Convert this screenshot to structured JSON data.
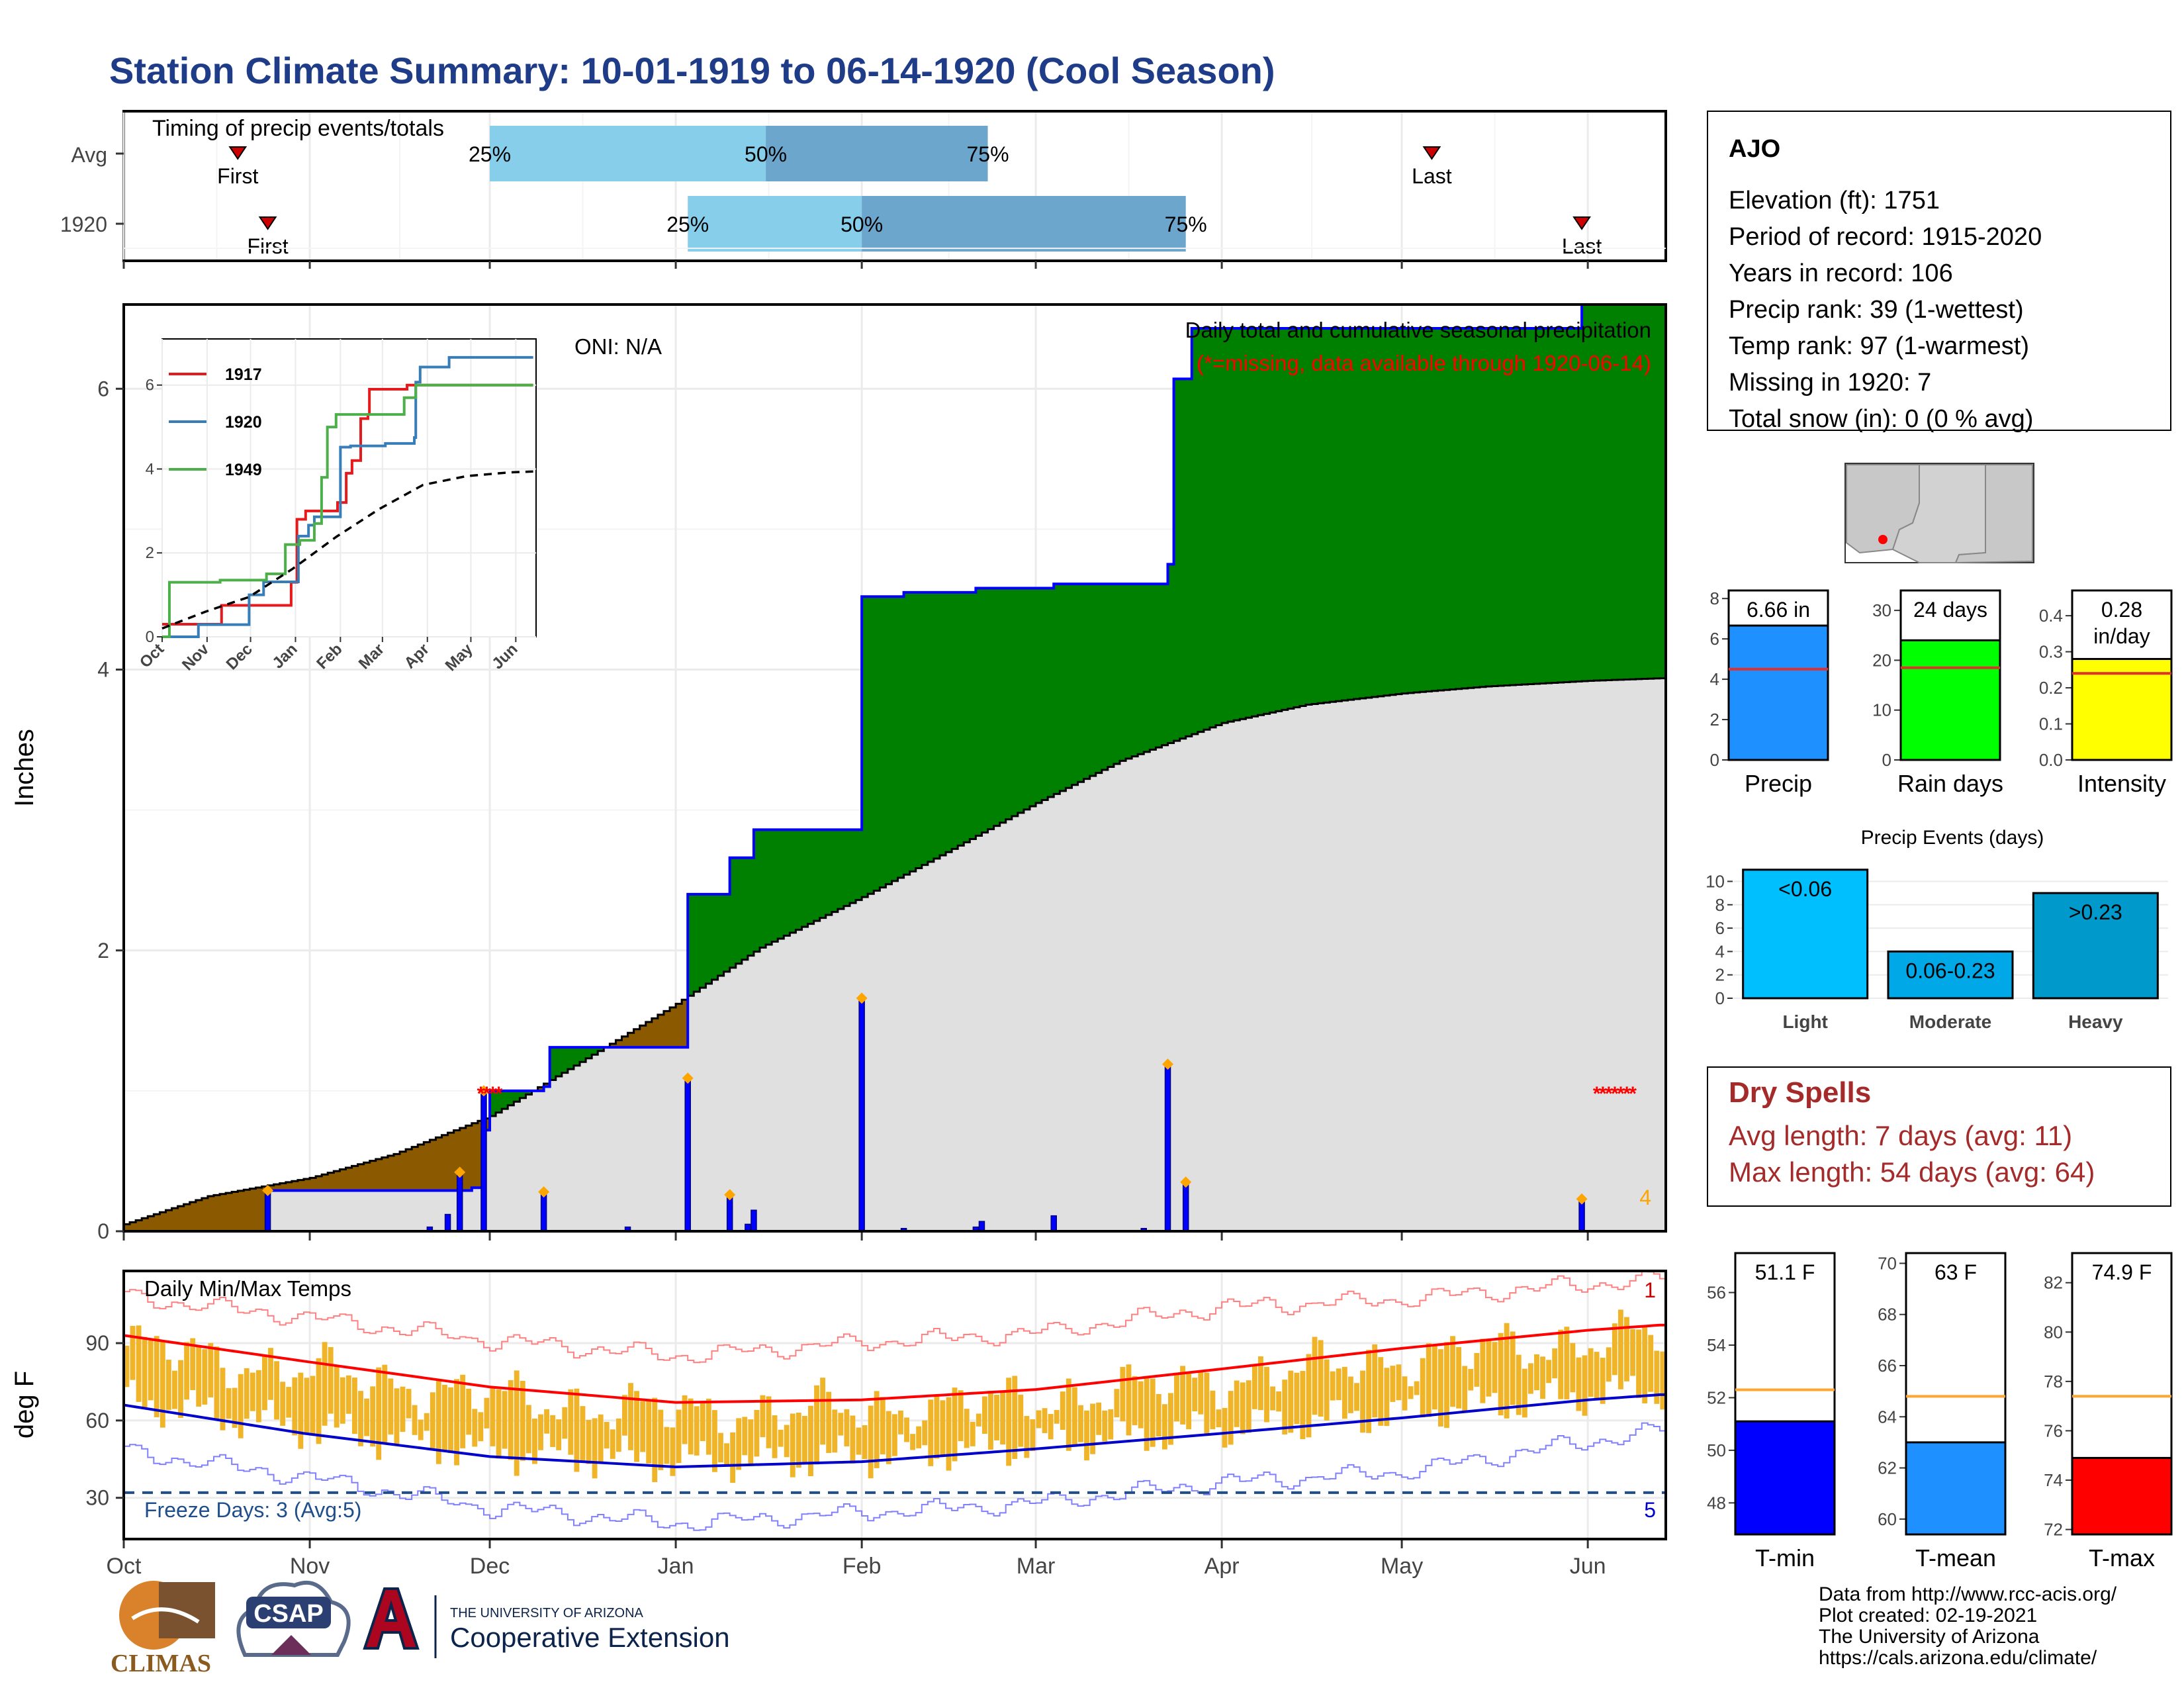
{
  "title": "Station Climate Summary: 10-01-1919 to 06-14-1920 (Cool Season)",
  "timing": {
    "label": "Timing of precip events/totals",
    "rows": [
      {
        "name": "Avg",
        "first_label": "First",
        "last_label": "Last",
        "first": "1919-10-20",
        "p25": "1919-12-01",
        "p50": "1920-01-16",
        "p75": "1920-02-22",
        "last": "1920-05-06"
      },
      {
        "name": "1920",
        "first_label": "First",
        "last_label": "Last",
        "first": "1919-10-25",
        "p25": "1920-01-03",
        "p50": "1920-02-01",
        "p75": "1920-03-26",
        "last": "1920-05-31"
      }
    ],
    "pct_labels": [
      "25%",
      "50%",
      "75%"
    ],
    "colors": {
      "light": "#87ceeb",
      "dark": "#6ca6cd"
    }
  },
  "chart_data": [
    {
      "type": "area",
      "name": "precip",
      "title": "Daily total and cumulative seasonal precipitation",
      "subtitle": "(*=missing, data available through 1920-06-14)",
      "oni": "ONI: N/A",
      "ylabel": "Inches",
      "ylim": [
        0,
        6.6
      ],
      "yticks": [
        0,
        2,
        4,
        6
      ],
      "x_range": [
        "1919-10-01",
        "1920-06-14"
      ],
      "count_label": "4",
      "cumulative_steps": [
        [
          "1919-10-01",
          0
        ],
        [
          "1919-10-25",
          0.29
        ],
        [
          "1919-11-28",
          0.31
        ],
        [
          "1919-11-30",
          0.72
        ],
        [
          "1919-12-01",
          1.0
        ],
        [
          "1919-12-10",
          1.03
        ],
        [
          "1919-12-11",
          1.31
        ],
        [
          "1920-01-01",
          1.31
        ],
        [
          "1920-01-03",
          2.4
        ],
        [
          "1920-01-10",
          2.66
        ],
        [
          "1920-01-14",
          2.86
        ],
        [
          "1920-02-01",
          4.52
        ],
        [
          "1920-02-08",
          4.55
        ],
        [
          "1920-02-20",
          4.58
        ],
        [
          "1920-03-04",
          4.61
        ],
        [
          "1920-03-23",
          4.75
        ],
        [
          "1920-03-24",
          6.07
        ],
        [
          "1920-03-27",
          6.43
        ],
        [
          "1920-05-31",
          6.66
        ],
        [
          "1920-06-14",
          6.66
        ]
      ],
      "avg_cumulative": [
        [
          "1919-10-01",
          0.05
        ],
        [
          "1919-10-15",
          0.25
        ],
        [
          "1919-11-01",
          0.38
        ],
        [
          "1919-11-15",
          0.55
        ],
        [
          "1919-12-01",
          0.82
        ],
        [
          "1919-12-15",
          1.18
        ],
        [
          "1920-01-01",
          1.62
        ],
        [
          "1920-01-15",
          2.02
        ],
        [
          "1920-02-01",
          2.38
        ],
        [
          "1920-02-15",
          2.7
        ],
        [
          "1920-03-01",
          3.05
        ],
        [
          "1920-03-15",
          3.35
        ],
        [
          "1920-04-01",
          3.62
        ],
        [
          "1920-04-15",
          3.75
        ],
        [
          "1920-05-01",
          3.83
        ],
        [
          "1920-05-15",
          3.88
        ],
        [
          "1920-06-01",
          3.92
        ],
        [
          "1920-06-14",
          3.94
        ]
      ],
      "daily": [
        [
          "1919-10-25",
          0.29
        ],
        [
          "1919-11-21",
          0.03
        ],
        [
          "1919-11-24",
          0.12
        ],
        [
          "1919-11-26",
          0.42
        ],
        [
          "1919-11-30",
          1.0
        ],
        [
          "1919-12-10",
          0.28
        ],
        [
          "1919-12-24",
          0.03
        ],
        [
          "1920-01-03",
          1.09
        ],
        [
          "1920-01-10",
          0.26
        ],
        [
          "1920-01-13",
          0.05
        ],
        [
          "1920-01-14",
          0.15
        ],
        [
          "1920-02-01",
          1.66
        ],
        [
          "1920-02-08",
          0.02
        ],
        [
          "1920-02-20",
          0.03
        ],
        [
          "1920-02-21",
          0.07
        ],
        [
          "1920-03-04",
          0.11
        ],
        [
          "1920-03-19",
          0.02
        ],
        [
          "1920-03-23",
          1.19
        ],
        [
          "1920-03-26",
          0.35
        ],
        [
          "1920-05-31",
          0.23
        ]
      ],
      "missing": [
        "1919-11-29",
        "1919-11-30",
        "1919-12-01",
        "1919-12-02",
        "1920-06-02",
        "1920-06-03",
        "1920-06-04",
        "1920-06-05",
        "1920-06-06",
        "1920-06-07",
        "1920-06-08"
      ],
      "colors": {
        "surplus": "#008000",
        "deficit": "#8b5a00",
        "avg_fill": "#e0e0e0",
        "line": "#0000ff",
        "marker": "#ffa500",
        "missing": "#ff0000"
      }
    },
    {
      "type": "line",
      "name": "inset",
      "x_categories": [
        "Oct",
        "Nov",
        "Dec",
        "Jan",
        "Feb",
        "Mar",
        "Apr",
        "May",
        "Jun"
      ],
      "yticks": [
        0,
        2,
        4,
        6
      ],
      "ylim": [
        0,
        7.1
      ],
      "series": [
        {
          "name": "1917",
          "color": "#e41a1c",
          "points": [
            [
              0,
              0.3
            ],
            [
              27,
              0.3
            ],
            [
              41,
              0.75
            ],
            [
              53,
              0.75
            ],
            [
              63,
              0.75
            ],
            [
              83,
              0.75
            ],
            [
              89,
              1.3
            ],
            [
              93,
              2.8
            ],
            [
              99,
              3.0
            ],
            [
              101,
              3.0
            ],
            [
              121,
              3.2
            ],
            [
              127,
              3.9
            ],
            [
              131,
              4.2
            ],
            [
              137,
              5.2
            ],
            [
              142,
              5.3
            ],
            [
              143,
              5.9
            ],
            [
              151,
              5.9
            ],
            [
              169,
              6.0
            ],
            [
              256,
              6.0
            ]
          ]
        },
        {
          "name": "1920",
          "color": "#377eb8",
          "points": [
            [
              0,
              0
            ],
            [
              25,
              0.29
            ],
            [
              60,
              1.0
            ],
            [
              70,
              1.31
            ],
            [
              94,
              2.4
            ],
            [
              101,
              2.66
            ],
            [
              105,
              2.86
            ],
            [
              123,
              4.52
            ],
            [
              130,
              4.55
            ],
            [
              154,
              4.61
            ],
            [
              174,
              4.75
            ],
            [
              175,
              6.07
            ],
            [
              178,
              6.43
            ],
            [
              198,
              6.66
            ],
            [
              240,
              6.66
            ],
            [
              256,
              6.66
            ]
          ]
        },
        {
          "name": "1949",
          "color": "#4daf4a",
          "points": [
            [
              0,
              0
            ],
            [
              5,
              1.3
            ],
            [
              25,
              1.3
            ],
            [
              40,
              1.35
            ],
            [
              72,
              1.5
            ],
            [
              85,
              2.2
            ],
            [
              95,
              2.3
            ],
            [
              105,
              2.7
            ],
            [
              110,
              3.8
            ],
            [
              114,
              5.0
            ],
            [
              120,
              5.3
            ],
            [
              145,
              5.3
            ],
            [
              167,
              5.7
            ],
            [
              175,
              6.0
            ],
            [
              256,
              6.0
            ]
          ]
        }
      ],
      "avg": [
        [
          0,
          0.2
        ],
        [
          30,
          0.6
        ],
        [
          60,
          0.95
        ],
        [
          90,
          1.62
        ],
        [
          120,
          2.38
        ],
        [
          150,
          3.05
        ],
        [
          180,
          3.62
        ],
        [
          210,
          3.83
        ],
        [
          240,
          3.92
        ],
        [
          256,
          3.94
        ]
      ]
    },
    {
      "type": "bar",
      "name": "temps",
      "title": "Daily Min/Max Temps",
      "ylabel": "deg F",
      "ylim": [
        14,
        118
      ],
      "yticks": [
        30,
        60,
        90
      ],
      "freeze_line": 32,
      "freeze_label": "Freeze Days: 3 (Avg:5)",
      "top_count": "1",
      "bottom_count": "5",
      "x_labels": [
        "Oct",
        "Nov",
        "Dec",
        "Jan",
        "Feb",
        "Mar",
        "Apr",
        "May",
        "Jun"
      ],
      "daily_range_source": "observed daily min/max bars (approximate)",
      "avg_max": [
        [
          0,
          93
        ],
        [
          30,
          83
        ],
        [
          61,
          73
        ],
        [
          92,
          67
        ],
        [
          123,
          68
        ],
        [
          152,
          72
        ],
        [
          183,
          80
        ],
        [
          213,
          88
        ],
        [
          244,
          95
        ],
        [
          256,
          97
        ]
      ],
      "avg_min": [
        [
          0,
          66
        ],
        [
          30,
          55
        ],
        [
          61,
          46
        ],
        [
          92,
          42
        ],
        [
          123,
          44
        ],
        [
          152,
          49
        ],
        [
          183,
          55
        ],
        [
          213,
          61
        ],
        [
          244,
          68
        ],
        [
          256,
          70
        ]
      ],
      "record_max": [
        [
          0,
          108
        ],
        [
          30,
          100
        ],
        [
          61,
          91
        ],
        [
          92,
          85
        ],
        [
          123,
          90
        ],
        [
          152,
          94
        ],
        [
          183,
          104
        ],
        [
          213,
          107
        ],
        [
          244,
          113
        ],
        [
          256,
          115
        ]
      ],
      "record_min": [
        [
          0,
          48
        ],
        [
          30,
          38
        ],
        [
          61,
          26
        ],
        [
          92,
          20
        ],
        [
          123,
          24
        ],
        [
          152,
          28
        ],
        [
          183,
          36
        ],
        [
          213,
          40
        ],
        [
          244,
          52
        ],
        [
          256,
          56
        ]
      ],
      "colors": {
        "bar": "#f0b429",
        "avg_max": "#ff0000",
        "avg_min": "#0000cd",
        "record_max": "#ff8080",
        "record_min": "#8080ff",
        "freeze": "#1f4e8c"
      }
    },
    {
      "type": "bar",
      "name": "precip-summary",
      "panels": [
        {
          "label": "Precip",
          "value": 6.66,
          "value_label": "6.66 in",
          "avg": 4.5,
          "ylim": [
            0,
            8.4
          ],
          "yticks": [
            0,
            2,
            4,
            6,
            8
          ],
          "color": "#1e90ff"
        },
        {
          "label": "Rain days",
          "value": 24,
          "value_label": "24 days",
          "avg": 18.5,
          "ylim": [
            0,
            34
          ],
          "yticks": [
            0,
            10,
            20,
            30
          ],
          "color": "#00ff00"
        },
        {
          "label": "Intensity",
          "value": 0.28,
          "value_label_line1": "0.28",
          "value_label_line2": "in/day",
          "avg": 0.24,
          "ylim": [
            0,
            0.47
          ],
          "yticks": [
            "0.0",
            "0.1",
            "0.2",
            "0.3",
            "0.4"
          ],
          "color": "#ffff00"
        }
      ]
    },
    {
      "type": "bar",
      "name": "precip-events",
      "title": "Precip Events (days)",
      "categories": [
        "Light",
        "Moderate",
        "Heavy"
      ],
      "bar_labels": [
        "<0.06",
        "0.06-0.23",
        ">0.23"
      ],
      "values": [
        11,
        4,
        9
      ],
      "ylim": [
        0,
        11.5
      ],
      "yticks": [
        0,
        2,
        4,
        6,
        8,
        10
      ],
      "colors": [
        "#00bfff",
        "#00a8e8",
        "#0099cc"
      ]
    },
    {
      "type": "bar",
      "name": "temp-summary",
      "panels": [
        {
          "label": "T-min",
          "value": 51.1,
          "value_label": "51.1 F",
          "avg": 52.3,
          "ylim": [
            46.8,
            57.5
          ],
          "yticks": [
            48,
            50,
            52,
            54,
            56
          ],
          "color": "#0000ff"
        },
        {
          "label": "T-mean",
          "value": 63,
          "value_label": "63 F",
          "avg": 64.8,
          "ylim": [
            59.4,
            70.4
          ],
          "yticks": [
            60,
            62,
            64,
            66,
            68,
            70
          ],
          "color": "#1e90ff"
        },
        {
          "label": "T-max",
          "value": 74.9,
          "value_label": "74.9 F",
          "avg": 77.4,
          "ylim": [
            71.8,
            83.2
          ],
          "yticks": [
            72,
            74,
            76,
            78,
            80,
            82
          ],
          "color": "#ff0000"
        }
      ]
    }
  ],
  "station": {
    "name": "AJO",
    "lines": [
      "Elevation (ft): 1751",
      "Period of record: 1915-2020",
      "Years in record: 106",
      "Precip rank: 39 (1-wettest)",
      "Temp rank: 97 (1-warmest)",
      "Missing in 1920: 7",
      "Total snow (in): 0 (0 % avg)"
    ]
  },
  "dry_spells": {
    "title": "Dry Spells",
    "lines": [
      "Avg length: 7 days (avg: 11)",
      "Max length: 54 days (avg: 64)"
    ]
  },
  "footer": {
    "lines": [
      "Data from http://www.rcc-acis.org/",
      "Plot created: 02-19-2021",
      "The University of Arizona",
      "https://cals.arizona.edu/climate/"
    ],
    "logos": {
      "climas": "CLIMAS",
      "csap": "CSAP",
      "ua_small": "THE UNIVERSITY OF ARIZONA",
      "ua_big": "Cooperative Extension"
    }
  }
}
